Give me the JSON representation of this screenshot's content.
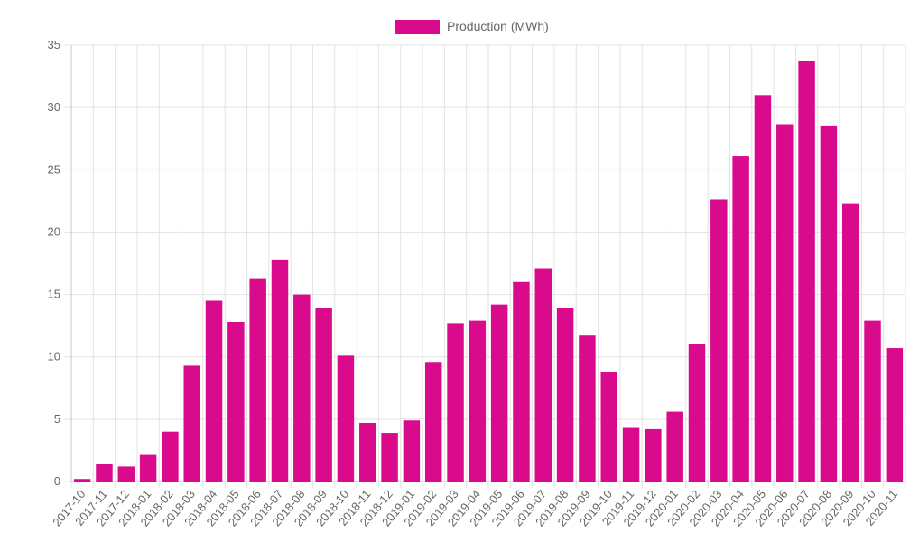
{
  "chart_data": {
    "type": "bar",
    "legend": {
      "label": "Production (MWh)",
      "position": "top"
    },
    "categories": [
      "2017-10",
      "2017-11",
      "2017-12",
      "2018-01",
      "2018-02",
      "2018-03",
      "2018-04",
      "2018-05",
      "2018-06",
      "2018-07",
      "2018-08",
      "2018-09",
      "2018-10",
      "2018-11",
      "2018-12",
      "2019-01",
      "2019-02",
      "2019-03",
      "2019-04",
      "2019-05",
      "2019-06",
      "2019-07",
      "2019-08",
      "2019-09",
      "2019-10",
      "2019-11",
      "2019-12",
      "2020-01",
      "2020-02",
      "2020-03",
      "2020-04",
      "2020-05",
      "2020-06",
      "2020-07",
      "2020-08",
      "2020-09",
      "2020-10",
      "2020-11"
    ],
    "series": [
      {
        "name": "Production (MWh)",
        "color": "#d90b8c",
        "values": [
          0.2,
          1.4,
          1.2,
          2.2,
          4.0,
          9.3,
          14.5,
          12.8,
          16.3,
          17.8,
          15.0,
          13.9,
          10.1,
          4.7,
          3.9,
          4.9,
          9.6,
          12.7,
          12.9,
          14.2,
          16.0,
          17.1,
          13.9,
          11.7,
          8.8,
          4.3,
          4.2,
          5.6,
          11.0,
          22.6,
          26.1,
          31.0,
          28.6,
          33.7,
          28.5,
          22.3,
          12.9,
          10.7
        ]
      }
    ],
    "ylim": [
      0,
      35
    ],
    "yticks": [
      0,
      5,
      10,
      15,
      20,
      25,
      30,
      35
    ],
    "grid": true,
    "xlabel": "",
    "ylabel": "",
    "colors": {
      "bar": "#d90b8c",
      "grid": "#e3e3e3",
      "text": "#666666"
    }
  }
}
